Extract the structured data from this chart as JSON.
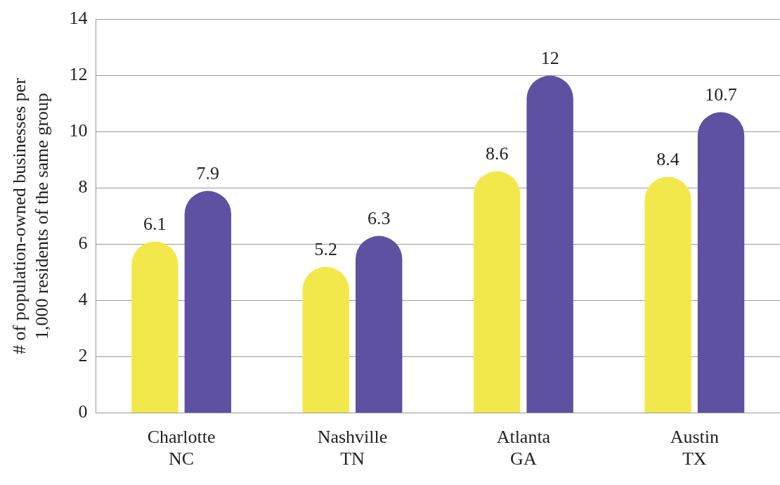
{
  "chart_data": {
    "type": "bar",
    "categories": [
      "Charlotte\nNC",
      "Nashville\nTN",
      "Atlanta\nGA",
      "Austin\nTX"
    ],
    "series": [
      {
        "color": "#f2e84b",
        "values": [
          6.1,
          5.2,
          8.6,
          8.4
        ]
      },
      {
        "color": "#5f51a2",
        "values": [
          7.9,
          6.3,
          12,
          10.7
        ]
      }
    ],
    "ylabel": "# of population-owned businesses per\n1,000 residents of the same group",
    "ylim": [
      0,
      14
    ],
    "yticks": [
      0,
      2,
      4,
      6,
      8,
      10,
      12,
      14
    ],
    "grid": "y",
    "legend": false,
    "data_labels": true
  }
}
